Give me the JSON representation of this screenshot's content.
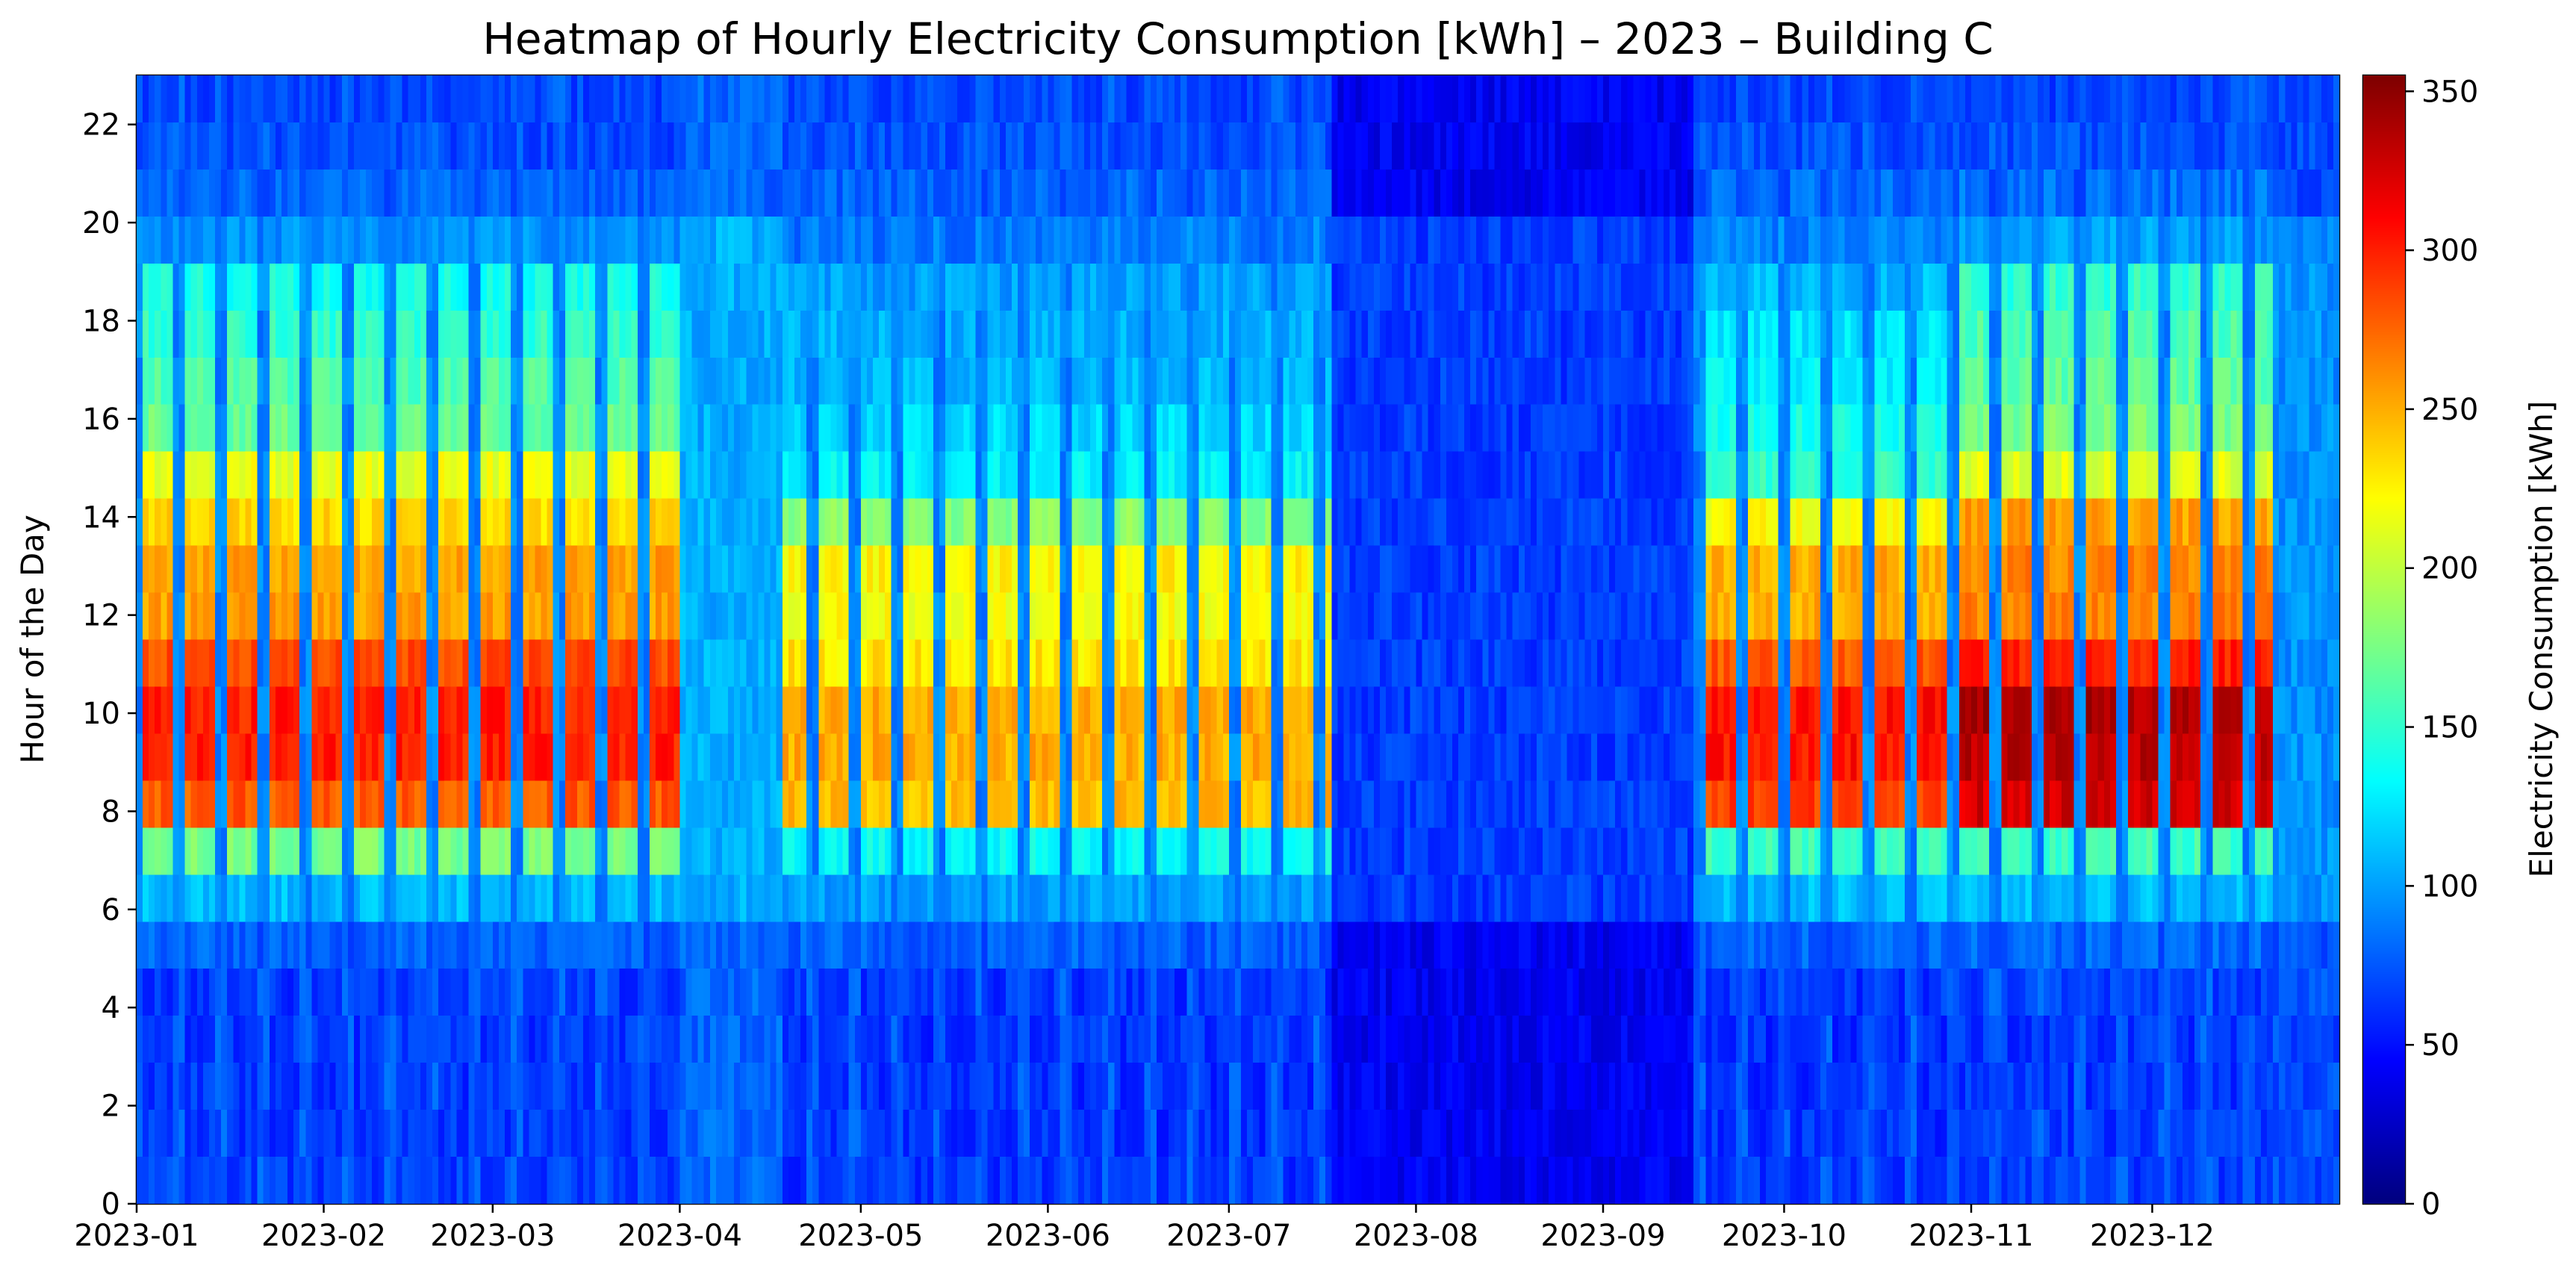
{
  "chart_data": {
    "type": "heatmap",
    "title": "Heatmap of Hourly Electricity Consumption [kWh] – 2023 – Building C",
    "xlabel": "",
    "ylabel": "Hour of the Day",
    "colorbar_label": "Electricity Consumption [kWh]",
    "colormap": "jet",
    "x_range": [
      "2023-01-01",
      "2023-12-31"
    ],
    "y_range": [
      0,
      23
    ],
    "value_range": [
      0,
      355
    ],
    "x_ticks": [
      "2023-01",
      "2023-02",
      "2023-03",
      "2023-04",
      "2023-05",
      "2023-06",
      "2023-07",
      "2023-08",
      "2023-09",
      "2023-10",
      "2023-11",
      "2023-12"
    ],
    "y_ticks": [
      0,
      2,
      4,
      6,
      8,
      10,
      12,
      14,
      16,
      18,
      20,
      22
    ],
    "colorbar_ticks": [
      0,
      50,
      100,
      150,
      200,
      250,
      300,
      350
    ],
    "hourly_weekday_profile": {
      "hours": [
        0,
        1,
        2,
        3,
        4,
        5,
        6,
        7,
        8,
        9,
        10,
        11,
        12,
        13,
        14,
        15,
        16,
        17,
        18,
        19,
        20,
        21,
        22,
        23
      ],
      "winter_kwh": [
        65,
        63,
        62,
        62,
        63,
        78,
        110,
        175,
        280,
        300,
        300,
        285,
        255,
        255,
        235,
        215,
        170,
        160,
        150,
        140,
        95,
        80,
        70,
        68
      ],
      "summer_kwh": [
        62,
        60,
        60,
        60,
        62,
        78,
        100,
        135,
        245,
        250,
        250,
        230,
        220,
        225,
        180,
        130,
        120,
        110,
        105,
        100,
        85,
        80,
        72,
        68
      ],
      "autumn_kwh": [
        62,
        60,
        60,
        60,
        62,
        78,
        110,
        155,
        290,
        305,
        305,
        280,
        250,
        250,
        220,
        150,
        140,
        130,
        125,
        110,
        90,
        82,
        72,
        68
      ],
      "november_december_kwh": [
        65,
        63,
        62,
        62,
        65,
        80,
        110,
        155,
        325,
        335,
        340,
        300,
        265,
        265,
        255,
        210,
        175,
        165,
        160,
        150,
        100,
        85,
        72,
        68
      ]
    },
    "low_consumption_periods": [
      {
        "from": "2023-07-18",
        "to": "2023-09-15",
        "typical_kwh": 50
      },
      {
        "from": "2023-04-01",
        "to": "2023-04-17",
        "typical_kwh": 90
      }
    ],
    "weekend_typical_kwh": 80
  }
}
